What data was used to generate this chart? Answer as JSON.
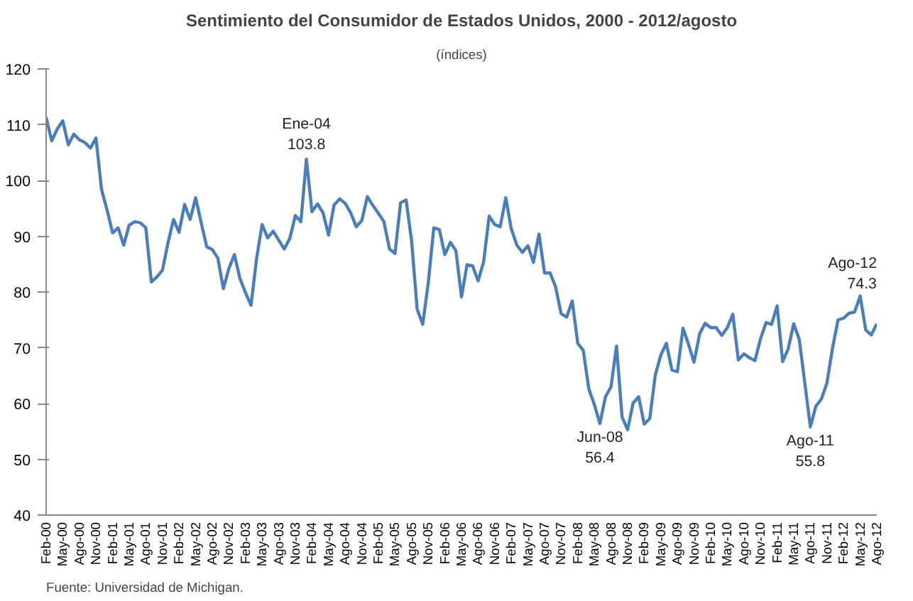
{
  "chart_data": {
    "type": "line",
    "title": "Sentimiento del Consumidor de Estados Unidos, 2000 - 2012/agosto",
    "subtitle": "(índices)",
    "x": [
      "2000-02",
      "2000-03",
      "2000-04",
      "2000-05",
      "2000-06",
      "2000-07",
      "2000-08",
      "2000-09",
      "2000-10",
      "2000-11",
      "2000-12",
      "2001-01",
      "2001-02",
      "2001-03",
      "2001-04",
      "2001-05",
      "2001-06",
      "2001-07",
      "2001-08",
      "2001-09",
      "2001-10",
      "2001-11",
      "2001-12",
      "2002-01",
      "2002-02",
      "2002-03",
      "2002-04",
      "2002-05",
      "2002-06",
      "2002-07",
      "2002-08",
      "2002-09",
      "2002-10",
      "2002-11",
      "2002-12",
      "2003-01",
      "2003-02",
      "2003-03",
      "2003-04",
      "2003-05",
      "2003-06",
      "2003-07",
      "2003-08",
      "2003-09",
      "2003-10",
      "2003-11",
      "2003-12",
      "2004-01",
      "2004-02",
      "2004-03",
      "2004-04",
      "2004-05",
      "2004-06",
      "2004-07",
      "2004-08",
      "2004-09",
      "2004-10",
      "2004-11",
      "2004-12",
      "2005-01",
      "2005-02",
      "2005-03",
      "2005-04",
      "2005-05",
      "2005-06",
      "2005-07",
      "2005-08",
      "2005-09",
      "2005-10",
      "2005-11",
      "2005-12",
      "2006-01",
      "2006-02",
      "2006-03",
      "2006-04",
      "2006-05",
      "2006-06",
      "2006-07",
      "2006-08",
      "2006-09",
      "2006-10",
      "2006-11",
      "2006-12",
      "2007-01",
      "2007-02",
      "2007-03",
      "2007-04",
      "2007-05",
      "2007-06",
      "2007-07",
      "2007-08",
      "2007-09",
      "2007-10",
      "2007-11",
      "2007-12",
      "2008-01",
      "2008-02",
      "2008-03",
      "2008-04",
      "2008-05",
      "2008-06",
      "2008-07",
      "2008-08",
      "2008-09",
      "2008-10",
      "2008-11",
      "2008-12",
      "2009-01",
      "2009-02",
      "2009-03",
      "2009-04",
      "2009-05",
      "2009-06",
      "2009-07",
      "2009-08",
      "2009-09",
      "2009-10",
      "2009-11",
      "2009-12",
      "2010-01",
      "2010-02",
      "2010-03",
      "2010-04",
      "2010-05",
      "2010-06",
      "2010-07",
      "2010-08",
      "2010-09",
      "2010-10",
      "2010-11",
      "2010-12",
      "2011-01",
      "2011-02",
      "2011-03",
      "2011-04",
      "2011-05",
      "2011-06",
      "2011-07",
      "2011-08",
      "2011-09",
      "2011-10",
      "2011-11",
      "2011-12",
      "2012-01",
      "2012-02",
      "2012-03",
      "2012-04",
      "2012-05",
      "2012-06",
      "2012-07",
      "2012-08"
    ],
    "series": [
      {
        "color": "#4a7ebb",
        "values": [
          111.3,
          107.1,
          109.2,
          110.7,
          106.4,
          108.3,
          107.3,
          106.8,
          105.8,
          107.6,
          98.4,
          94.7,
          90.6,
          91.5,
          88.4,
          92.0,
          92.6,
          92.4,
          91.5,
          81.8,
          82.7,
          83.9,
          88.8,
          93.0,
          90.7,
          95.7,
          93.0,
          96.9,
          92.4,
          88.1,
          87.6,
          86.1,
          80.6,
          84.2,
          86.7,
          82.4,
          79.9,
          77.6,
          86.0,
          92.1,
          89.7,
          90.9,
          89.3,
          87.7,
          89.6,
          93.7,
          92.6,
          103.8,
          94.4,
          95.8,
          94.2,
          90.2,
          95.6,
          96.7,
          95.9,
          94.2,
          91.7,
          92.8,
          97.1,
          95.5,
          94.1,
          92.6,
          87.7,
          86.9,
          96.0,
          96.5,
          89.1,
          76.9,
          74.2,
          81.6,
          91.5,
          91.2,
          86.7,
          88.9,
          87.4,
          79.1,
          84.9,
          84.7,
          82.0,
          85.4,
          93.6,
          92.1,
          91.7,
          96.9,
          91.3,
          88.4,
          87.1,
          88.3,
          85.3,
          90.4,
          83.4,
          83.4,
          80.9,
          76.1,
          75.5,
          78.4,
          70.8,
          69.5,
          62.6,
          59.8,
          56.4,
          61.2,
          63.0,
          70.3,
          57.6,
          55.3,
          60.1,
          61.2,
          56.3,
          57.3,
          65.1,
          68.7,
          70.8,
          66.0,
          65.7,
          73.5,
          70.6,
          67.4,
          72.5,
          74.4,
          73.6,
          73.6,
          72.2,
          73.6,
          76.0,
          67.8,
          68.9,
          68.2,
          67.7,
          71.6,
          74.5,
          74.2,
          77.5,
          67.5,
          69.8,
          74.3,
          71.5,
          63.7,
          55.8,
          59.5,
          60.8,
          63.7,
          69.9,
          75.0,
          75.3,
          76.2,
          76.4,
          79.3,
          73.2,
          72.3,
          74.3
        ]
      }
    ],
    "xlim": [
      "2000-02",
      "2012-08"
    ],
    "xticks": [
      {
        "value": "2000-02",
        "label": "Feb-00"
      },
      {
        "value": "2000-05",
        "label": "May-00"
      },
      {
        "value": "2000-08",
        "label": "Ago-00"
      },
      {
        "value": "2000-11",
        "label": "Nov-00"
      },
      {
        "value": "2001-02",
        "label": "Feb-01"
      },
      {
        "value": "2001-05",
        "label": "May-01"
      },
      {
        "value": "2001-08",
        "label": "Ago-01"
      },
      {
        "value": "2001-11",
        "label": "Nov-01"
      },
      {
        "value": "2002-02",
        "label": "Feb-02"
      },
      {
        "value": "2002-05",
        "label": "May-02"
      },
      {
        "value": "2002-08",
        "label": "Ago-02"
      },
      {
        "value": "2002-11",
        "label": "Nov-02"
      },
      {
        "value": "2003-02",
        "label": "Feb-03"
      },
      {
        "value": "2003-05",
        "label": "May-03"
      },
      {
        "value": "2003-08",
        "label": "Ago-03"
      },
      {
        "value": "2003-11",
        "label": "Nov-03"
      },
      {
        "value": "2004-02",
        "label": "Feb-04"
      },
      {
        "value": "2004-05",
        "label": "May-04"
      },
      {
        "value": "2004-08",
        "label": "Ago-04"
      },
      {
        "value": "2004-11",
        "label": "Nov-04"
      },
      {
        "value": "2005-02",
        "label": "Feb-05"
      },
      {
        "value": "2005-05",
        "label": "May-05"
      },
      {
        "value": "2005-08",
        "label": "Ago-05"
      },
      {
        "value": "2005-11",
        "label": "Nov-05"
      },
      {
        "value": "2006-02",
        "label": "Feb-06"
      },
      {
        "value": "2006-05",
        "label": "May-06"
      },
      {
        "value": "2006-08",
        "label": "Ago-06"
      },
      {
        "value": "2006-11",
        "label": "Nov-06"
      },
      {
        "value": "2007-02",
        "label": "Feb-07"
      },
      {
        "value": "2007-05",
        "label": "May-07"
      },
      {
        "value": "2007-08",
        "label": "Ago-07"
      },
      {
        "value": "2007-11",
        "label": "Nov-07"
      },
      {
        "value": "2008-02",
        "label": "Feb-08"
      },
      {
        "value": "2008-05",
        "label": "May-08"
      },
      {
        "value": "2008-08",
        "label": "Ago-08"
      },
      {
        "value": "2008-11",
        "label": "Nov-08"
      },
      {
        "value": "2009-02",
        "label": "Feb-09"
      },
      {
        "value": "2009-05",
        "label": "May-09"
      },
      {
        "value": "2009-08",
        "label": "Ago-09"
      },
      {
        "value": "2009-11",
        "label": "Nov-09"
      },
      {
        "value": "2010-02",
        "label": "Feb-10"
      },
      {
        "value": "2010-05",
        "label": "May-10"
      },
      {
        "value": "2010-08",
        "label": "Ago-10"
      },
      {
        "value": "2010-11",
        "label": "Nov-10"
      },
      {
        "value": "2011-02",
        "label": "Feb-11"
      },
      {
        "value": "2011-05",
        "label": "May-11"
      },
      {
        "value": "2011-08",
        "label": "Ago-11"
      },
      {
        "value": "2011-11",
        "label": "Nov-11"
      },
      {
        "value": "2012-02",
        "label": "Feb-12"
      },
      {
        "value": "2012-05",
        "label": "May-12"
      },
      {
        "value": "2012-08",
        "label": "Ago-12"
      }
    ],
    "ylim": [
      40,
      120
    ],
    "yticks": [
      40,
      50,
      60,
      70,
      80,
      90,
      100,
      110,
      120
    ],
    "grid": false,
    "marker": "none",
    "line_style": "solid",
    "annotations": [
      {
        "text": "Ene-04\n103.8",
        "x": "2004-01",
        "y": 103.8
      },
      {
        "text": "Jun-08\n56.4",
        "x": "2008-06",
        "y": 56.4
      },
      {
        "text": "Ago-11\n55.8",
        "x": "2011-08",
        "y": 55.8
      },
      {
        "text": "Ago-12\n74.3",
        "x": "2012-08",
        "y": 74.3
      },
      "Fuente: Universidad de Michigan."
    ]
  }
}
